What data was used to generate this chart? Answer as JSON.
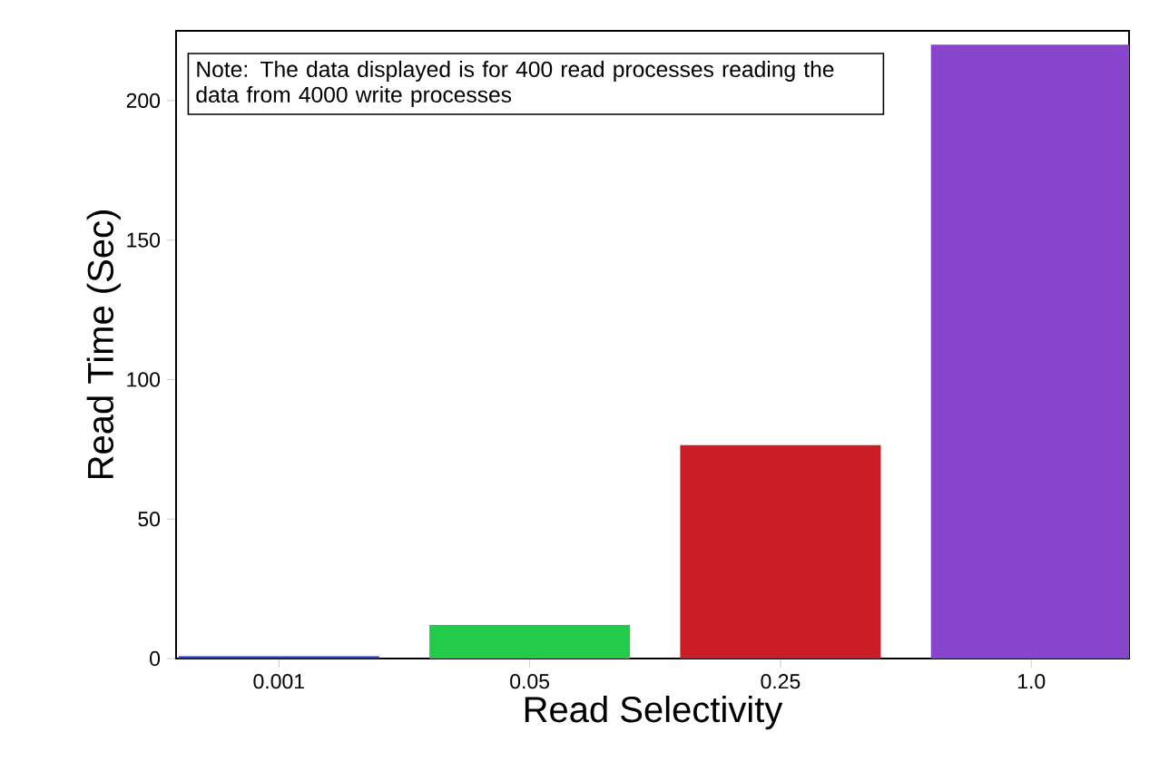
{
  "chart_data": {
    "type": "bar",
    "xlabel": "Read Selectivity",
    "ylabel": "Read Time (Sec)",
    "categories": [
      "0.001",
      "0.05",
      "0.25",
      "1.0"
    ],
    "values": [
      0.8,
      12,
      76.5,
      220
    ],
    "colors": [
      "#1f3fbf",
      "#22cc4a",
      "#c91e26",
      "#8844cc"
    ],
    "ylim": [
      0,
      225
    ],
    "yticks": [
      0,
      50,
      100,
      150,
      200
    ],
    "annotations": [
      "Note: The data displayed is for 400 read processes reading the data from 4000 write processes"
    ]
  }
}
